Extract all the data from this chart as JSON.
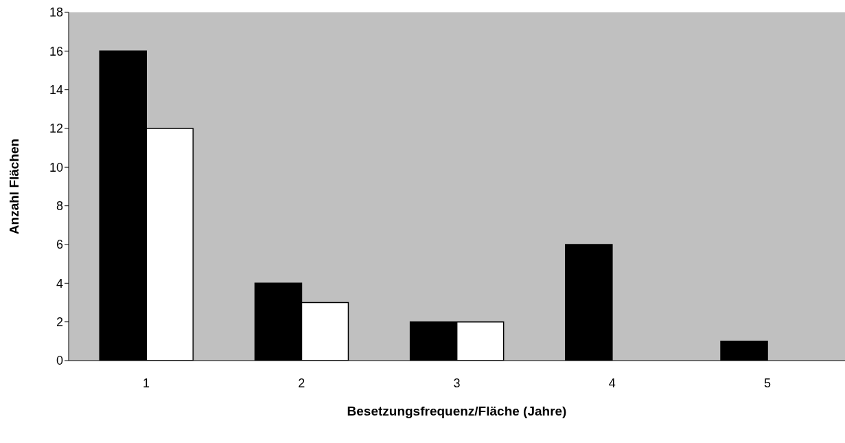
{
  "chart_data": {
    "type": "bar",
    "xlabel": "Besetzungsfrequenz/Fläche (Jahre)",
    "ylabel": "Anzahl Flächen",
    "categories": [
      "1",
      "2",
      "3",
      "4",
      "5"
    ],
    "series": [
      {
        "color": "#000000",
        "values": [
          16,
          4,
          2,
          6,
          1
        ]
      },
      {
        "color": "#ffffff",
        "values": [
          12,
          3,
          2,
          0,
          0
        ]
      }
    ],
    "ylim": [
      0,
      18
    ],
    "yticks": [
      0,
      2,
      4,
      6,
      8,
      10,
      12,
      14,
      16,
      18
    ],
    "grid": false,
    "legend": false
  }
}
